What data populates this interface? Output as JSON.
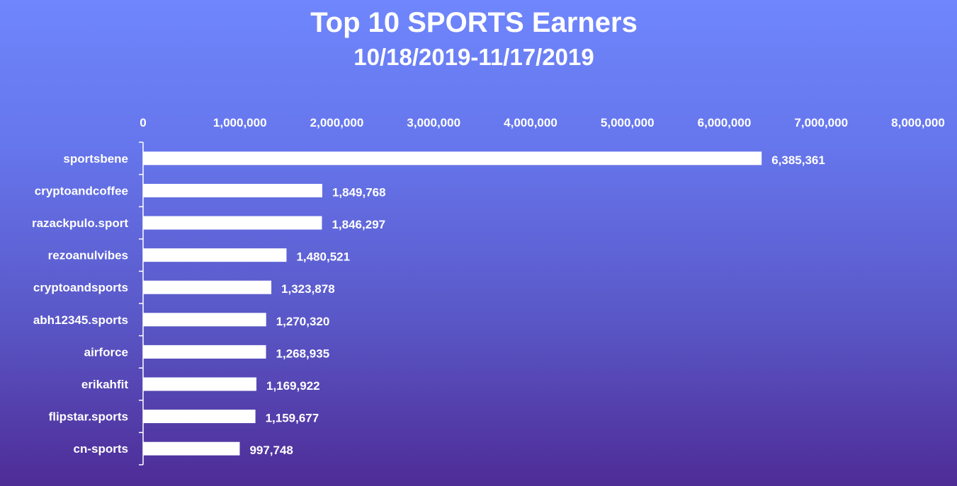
{
  "chart_data": {
    "type": "bar",
    "orientation": "horizontal",
    "title": "Top 10 SPORTS Earners",
    "subtitle": "10/18/2019-11/17/2019",
    "xlabel": "",
    "ylabel": "",
    "xlim": [
      0,
      8000000
    ],
    "x_ticks": [
      0,
      1000000,
      2000000,
      3000000,
      4000000,
      5000000,
      6000000,
      7000000,
      8000000
    ],
    "x_tick_labels": [
      "0",
      "1,000,000",
      "2,000,000",
      "3,000,000",
      "4,000,000",
      "5,000,000",
      "6,000,000",
      "7,000,000",
      "8,000,000"
    ],
    "x_axis_position": "top",
    "grid": false,
    "legend": "none",
    "bar_color": "#ffffff",
    "categories": [
      "sportsbene",
      "cryptoandcoffee",
      "razackpulo.sport",
      "rezoanulvibes",
      "cryptoandsports",
      "abh12345.sports",
      "airforce",
      "erikahfit",
      "flipstar.sports",
      "cn-sports"
    ],
    "values": [
      6385361,
      1849768,
      1846297,
      1480521,
      1323878,
      1270320,
      1268935,
      1169922,
      1159677,
      997748
    ],
    "value_labels": [
      "6,385,361",
      "1,849,768",
      "1,846,297",
      "1,480,521",
      "1,323,878",
      "1,270,320",
      "1,268,935",
      "1,169,922",
      "1,159,677",
      "997,748"
    ]
  }
}
